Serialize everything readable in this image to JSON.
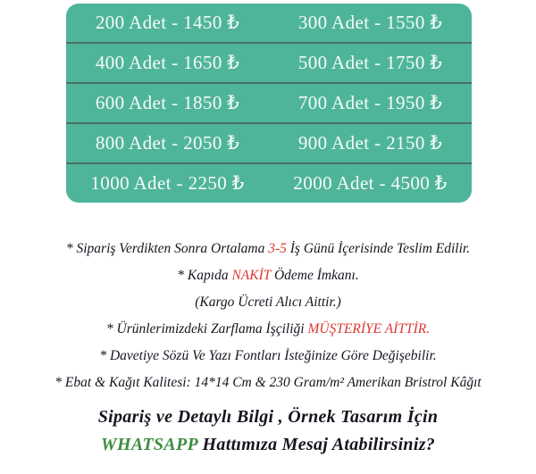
{
  "colors": {
    "teal": "#4FB59A",
    "divider": "#4A6E66",
    "table_text": "#F6FBF9",
    "body_text": "#15151F",
    "red": "#D93831",
    "green": "#3E8E41",
    "background": "#FFFFFF"
  },
  "price_table": {
    "rows": [
      {
        "left": "200 Adet - 1450 ₺",
        "right": "300 Adet - 1550 ₺"
      },
      {
        "left": "400 Adet - 1650 ₺",
        "right": "500 Adet - 1750 ₺"
      },
      {
        "left": "600 Adet - 1850 ₺",
        "right": "700 Adet - 1950 ₺"
      },
      {
        "left": "800 Adet - 2050 ₺",
        "right": "900 Adet - 2150 ₺"
      },
      {
        "left": "1000 Adet - 2250 ₺",
        "right": "2000 Adet - 4500 ₺"
      }
    ]
  },
  "notes": [
    [
      {
        "t": "* Sipariş Verdikten Sonra Ortalama "
      },
      {
        "t": "3-5",
        "c": "red"
      },
      {
        "t": " İş Günü İçerisinde Teslim Edilir."
      }
    ],
    [
      {
        "t": "* Kapıda "
      },
      {
        "t": "NAKİT",
        "c": "red"
      },
      {
        "t": " Ödeme İmkanı."
      }
    ],
    [
      {
        "t": "(Kargo Ücreti Alıcı Aittir.)"
      }
    ],
    [
      {
        "t": "* Ürünlerimizdeki Zarflama İşçiliği "
      },
      {
        "t": "MÜŞTERİYE AİTTİR.",
        "c": "red"
      }
    ],
    [
      {
        "t": "* Davetiye Sözü Ve Yazı Fontları İsteğinize Göre Değişebilir."
      }
    ],
    [
      {
        "t": "* Ebat & Kağıt Kalitesi: 14*14 Cm & 230 Gram/m² Amerikan Bristrol Kâğıt"
      }
    ]
  ],
  "footer": [
    [
      {
        "t": "Sipariş ve Detaylı Bilgi , Örnek Tasarım İçin"
      }
    ],
    [
      {
        "t": "WHATSAPP",
        "c": "green"
      },
      {
        "t": " Hattımıza Mesaj Atabilirsiniz?"
      }
    ]
  ]
}
